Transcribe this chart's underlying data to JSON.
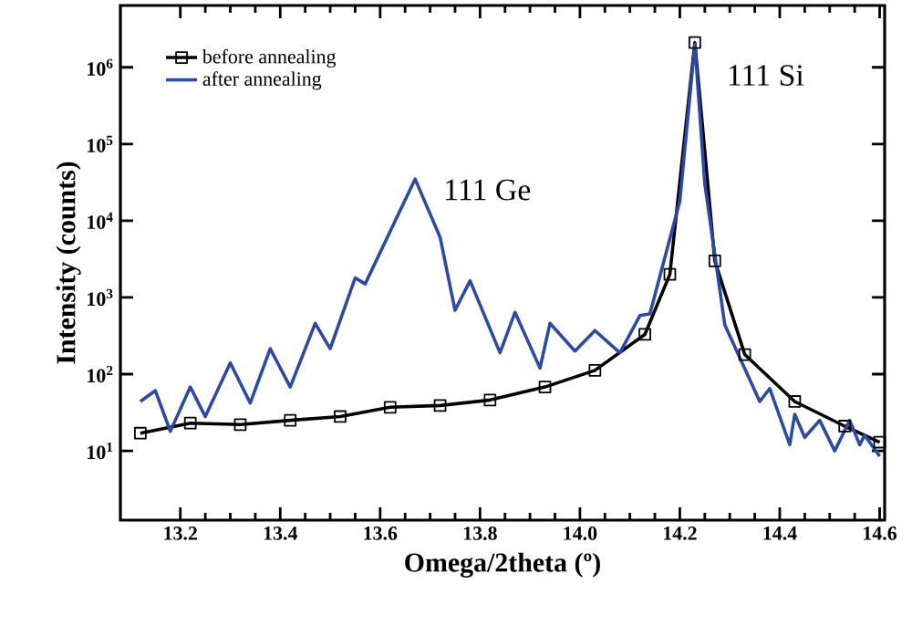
{
  "chart_data": {
    "type": "line",
    "xlabel": "Omega/2theta (º)",
    "ylabel": "Intensity (counts)",
    "log": "y",
    "xlim": [
      13.08,
      14.61
    ],
    "xticks": [
      13.2,
      13.4,
      13.6,
      13.8,
      {
        "value": 14.0,
        "label": "14.0"
      },
      14.2,
      14.4,
      14.6
    ],
    "ylim": [
      1.25,
      6400000
    ],
    "yticks": [
      {
        "value": 10,
        "label": "10$^{1}$"
      },
      {
        "value": 100,
        "label": "10$^{2}$"
      },
      {
        "value": 1000,
        "label": "10$^{3}$"
      },
      {
        "value": 10000,
        "label": "10$^{4}$"
      },
      {
        "value": 100000,
        "label": "10$^{5}$"
      },
      {
        "value": 1000000,
        "label": "10$^{6}$"
      }
    ],
    "legend": "top left",
    "grid": false,
    "series": [
      {
        "name": "before annealing",
        "color": "#000000",
        "marker": "square",
        "x": [
          13.12,
          13.22,
          13.32,
          13.42,
          13.52,
          13.62,
          13.72,
          13.82,
          13.93,
          14.03,
          14.13,
          14.18,
          14.23,
          14.27,
          14.33,
          14.43,
          14.53,
          14.6
        ],
        "values": [
          17,
          23,
          22,
          25,
          28,
          37,
          39,
          46,
          68,
          112,
          330,
          2000,
          2100000,
          3000,
          180,
          44,
          21,
          13
        ]
      },
      {
        "name": "after annealing",
        "color": "#2b4aa0",
        "marker": "none",
        "x": [
          13.12,
          13.15,
          13.18,
          13.22,
          13.25,
          13.3,
          13.34,
          13.38,
          13.42,
          13.47,
          13.5,
          13.55,
          13.57,
          13.67,
          13.72,
          13.75,
          13.78,
          13.84,
          13.87,
          13.92,
          13.94,
          13.99,
          14.03,
          14.08,
          14.12,
          14.14,
          14.2,
          14.23,
          14.25,
          14.29,
          14.36,
          14.38,
          14.42,
          14.43,
          14.45,
          14.48,
          14.51,
          14.54,
          14.56,
          14.57,
          14.6
        ],
        "values": [
          44,
          61,
          18,
          68,
          28,
          140,
          42,
          215,
          68,
          460,
          215,
          1800,
          1500,
          35000,
          6100,
          680,
          1650,
          190,
          640,
          120,
          460,
          200,
          370,
          190,
          580,
          610,
          18000,
          2000000,
          30000,
          440,
          44,
          65,
          12,
          30,
          15,
          25,
          10,
          25,
          12,
          16,
          8.5
        ]
      }
    ],
    "annotations": [
      {
        "text": "111 Ge",
        "x": 13.67,
        "y": 35000
      },
      {
        "text": "111 Si",
        "x": 14.23,
        "y": 2100000
      }
    ]
  }
}
